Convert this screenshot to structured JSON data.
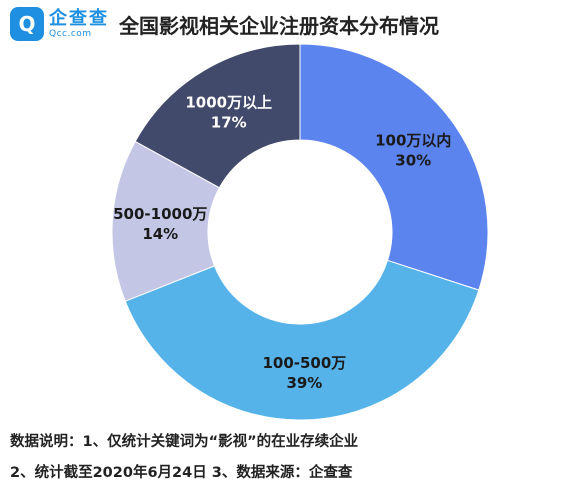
{
  "header": {
    "logo_cn": "企查查",
    "logo_en": "Qcc.com",
    "title": "全国影视相关企业注册资本分布情况"
  },
  "chart_data": {
    "type": "pie",
    "title": "全国影视相关企业注册资本分布情况",
    "slices": [
      {
        "label": "100万以内",
        "value": 30,
        "display": "30%",
        "color": "#5b84ee"
      },
      {
        "label": "100-500万",
        "value": 39,
        "display": "39%",
        "color": "#56b3ea"
      },
      {
        "label": "500-1000万",
        "value": 14,
        "display": "14%",
        "color": "#c4c6e6"
      },
      {
        "label": "1000万以上",
        "value": 17,
        "display": "17%",
        "color": "#424a6b"
      }
    ]
  },
  "footer": {
    "line1": "数据说明：1、仅统计关键词为“影视”的在业存续企业",
    "line2": "2、统计截至2020年6月24日    3、数据来源：企查查"
  }
}
